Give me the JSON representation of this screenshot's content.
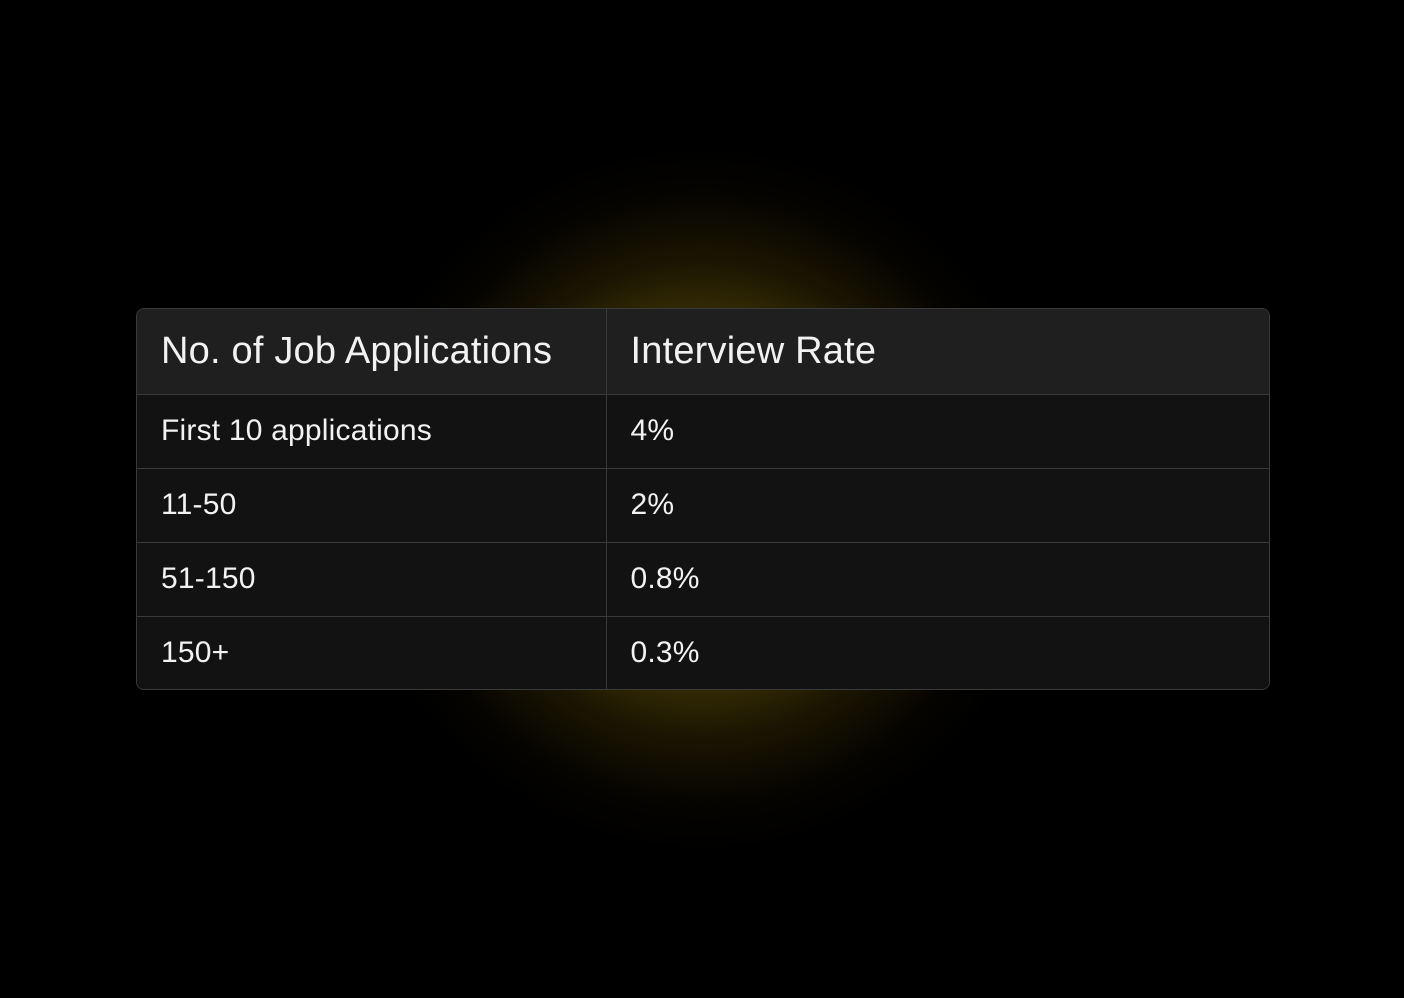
{
  "table": {
    "headers": [
      "No. of Job Applications",
      "Interview Rate"
    ],
    "rows": [
      [
        "First 10 applications",
        "4%"
      ],
      [
        "11-50",
        "2%"
      ],
      [
        "51-150",
        "0.8%"
      ],
      [
        "150+",
        "0.3%"
      ]
    ]
  },
  "colors": {
    "background": "#000000",
    "glow": "#c8a20f",
    "header_row": "#1f1f1f",
    "body_row": "#121212",
    "border": "#3a3a3a",
    "text": "#f2f2f2"
  }
}
